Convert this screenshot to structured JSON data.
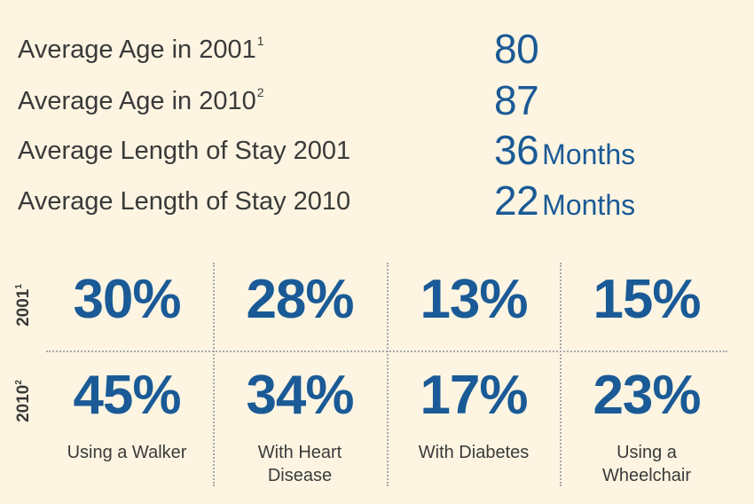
{
  "stats": [
    {
      "label": "Average Age in 2001",
      "sup": "1",
      "value": "80",
      "unit": ""
    },
    {
      "label": "Average Age in 2010",
      "sup": "2",
      "value": "87",
      "unit": ""
    },
    {
      "label": "Average Length of Stay 2001",
      "sup": "",
      "value": "36",
      "unit": "Months"
    },
    {
      "label": "Average Length of Stay 2010",
      "sup": "",
      "value": "22",
      "unit": "Months"
    }
  ],
  "years": [
    {
      "year": "2001",
      "sup": "1"
    },
    {
      "year": "2010",
      "sup": "2"
    }
  ],
  "percent_2001": [
    "30%",
    "28%",
    "13%",
    "15%"
  ],
  "percent_2010": [
    "45%",
    "34%",
    "17%",
    "23%"
  ],
  "categories": [
    {
      "line1": "Using a Walker",
      "line2": ""
    },
    {
      "line1": "With Heart",
      "line2": "Disease"
    },
    {
      "line1": "With Diabetes",
      "line2": ""
    },
    {
      "line1": "Using a",
      "line2": "Wheelchair"
    }
  ],
  "colors": {
    "accent": "#1a5a96",
    "background": "#fdf5e2",
    "text": "#3a3a3a"
  }
}
